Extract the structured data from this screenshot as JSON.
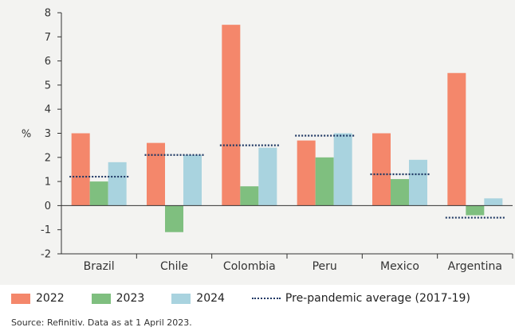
{
  "chart_data": {
    "type": "bar",
    "ylabel": "%",
    "ylim": [
      -2,
      8
    ],
    "yticks": [
      -2,
      -1,
      0,
      1,
      2,
      3,
      4,
      5,
      6,
      7,
      8
    ],
    "categories": [
      "Brazil",
      "Chile",
      "Colombia",
      "Peru",
      "Mexico",
      "Argentina"
    ],
    "series": [
      {
        "name": "2022",
        "color": "#f4876b",
        "values": [
          3.0,
          2.6,
          7.5,
          2.7,
          3.0,
          5.5
        ]
      },
      {
        "name": "2023",
        "color": "#7fbf7f",
        "values": [
          1.0,
          -1.1,
          0.8,
          2.0,
          1.1,
          -0.4
        ]
      },
      {
        "name": "2024",
        "color": "#a9d3df",
        "values": [
          1.8,
          2.1,
          2.4,
          3.0,
          1.9,
          0.3
        ]
      }
    ],
    "reference": {
      "name": "Pre-pandemic average (2017-19)",
      "color": "#1f3864",
      "style": "dotted",
      "values": [
        1.2,
        2.1,
        2.5,
        2.9,
        1.3,
        -0.5
      ]
    },
    "legend_position": "bottom",
    "grid": false
  },
  "source": "Source: Refinitiv. Data as at 1 April 2023."
}
